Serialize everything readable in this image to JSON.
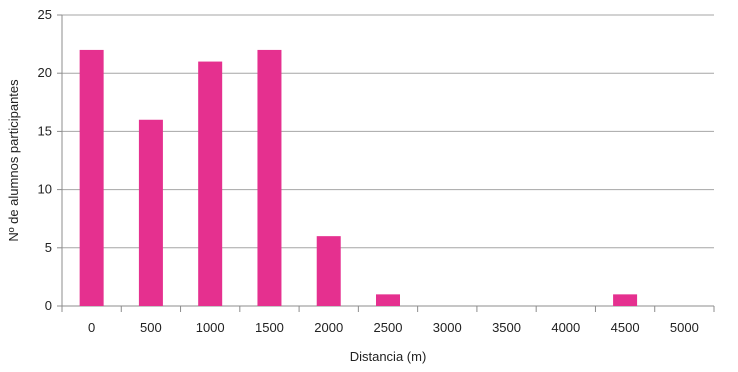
{
  "chart_data": {
    "type": "bar",
    "xlabel": "Distancia (m)",
    "ylabel": "Nº de alumnos participantes",
    "categories": [
      "0",
      "500",
      "1000",
      "1500",
      "2000",
      "2500",
      "3000",
      "3500",
      "4000",
      "4500",
      "5000"
    ],
    "values": [
      22,
      16,
      21,
      22,
      6,
      1,
      0,
      0,
      0,
      1,
      0
    ],
    "yticks": [
      "0",
      "5",
      "10",
      "15",
      "20",
      "25"
    ],
    "ylim": [
      0,
      25
    ],
    "grid": true,
    "legend": "none",
    "bar_color": "#e5308f",
    "grid_color": "#a6a6a6",
    "axis_color": "#8c8c8c"
  }
}
